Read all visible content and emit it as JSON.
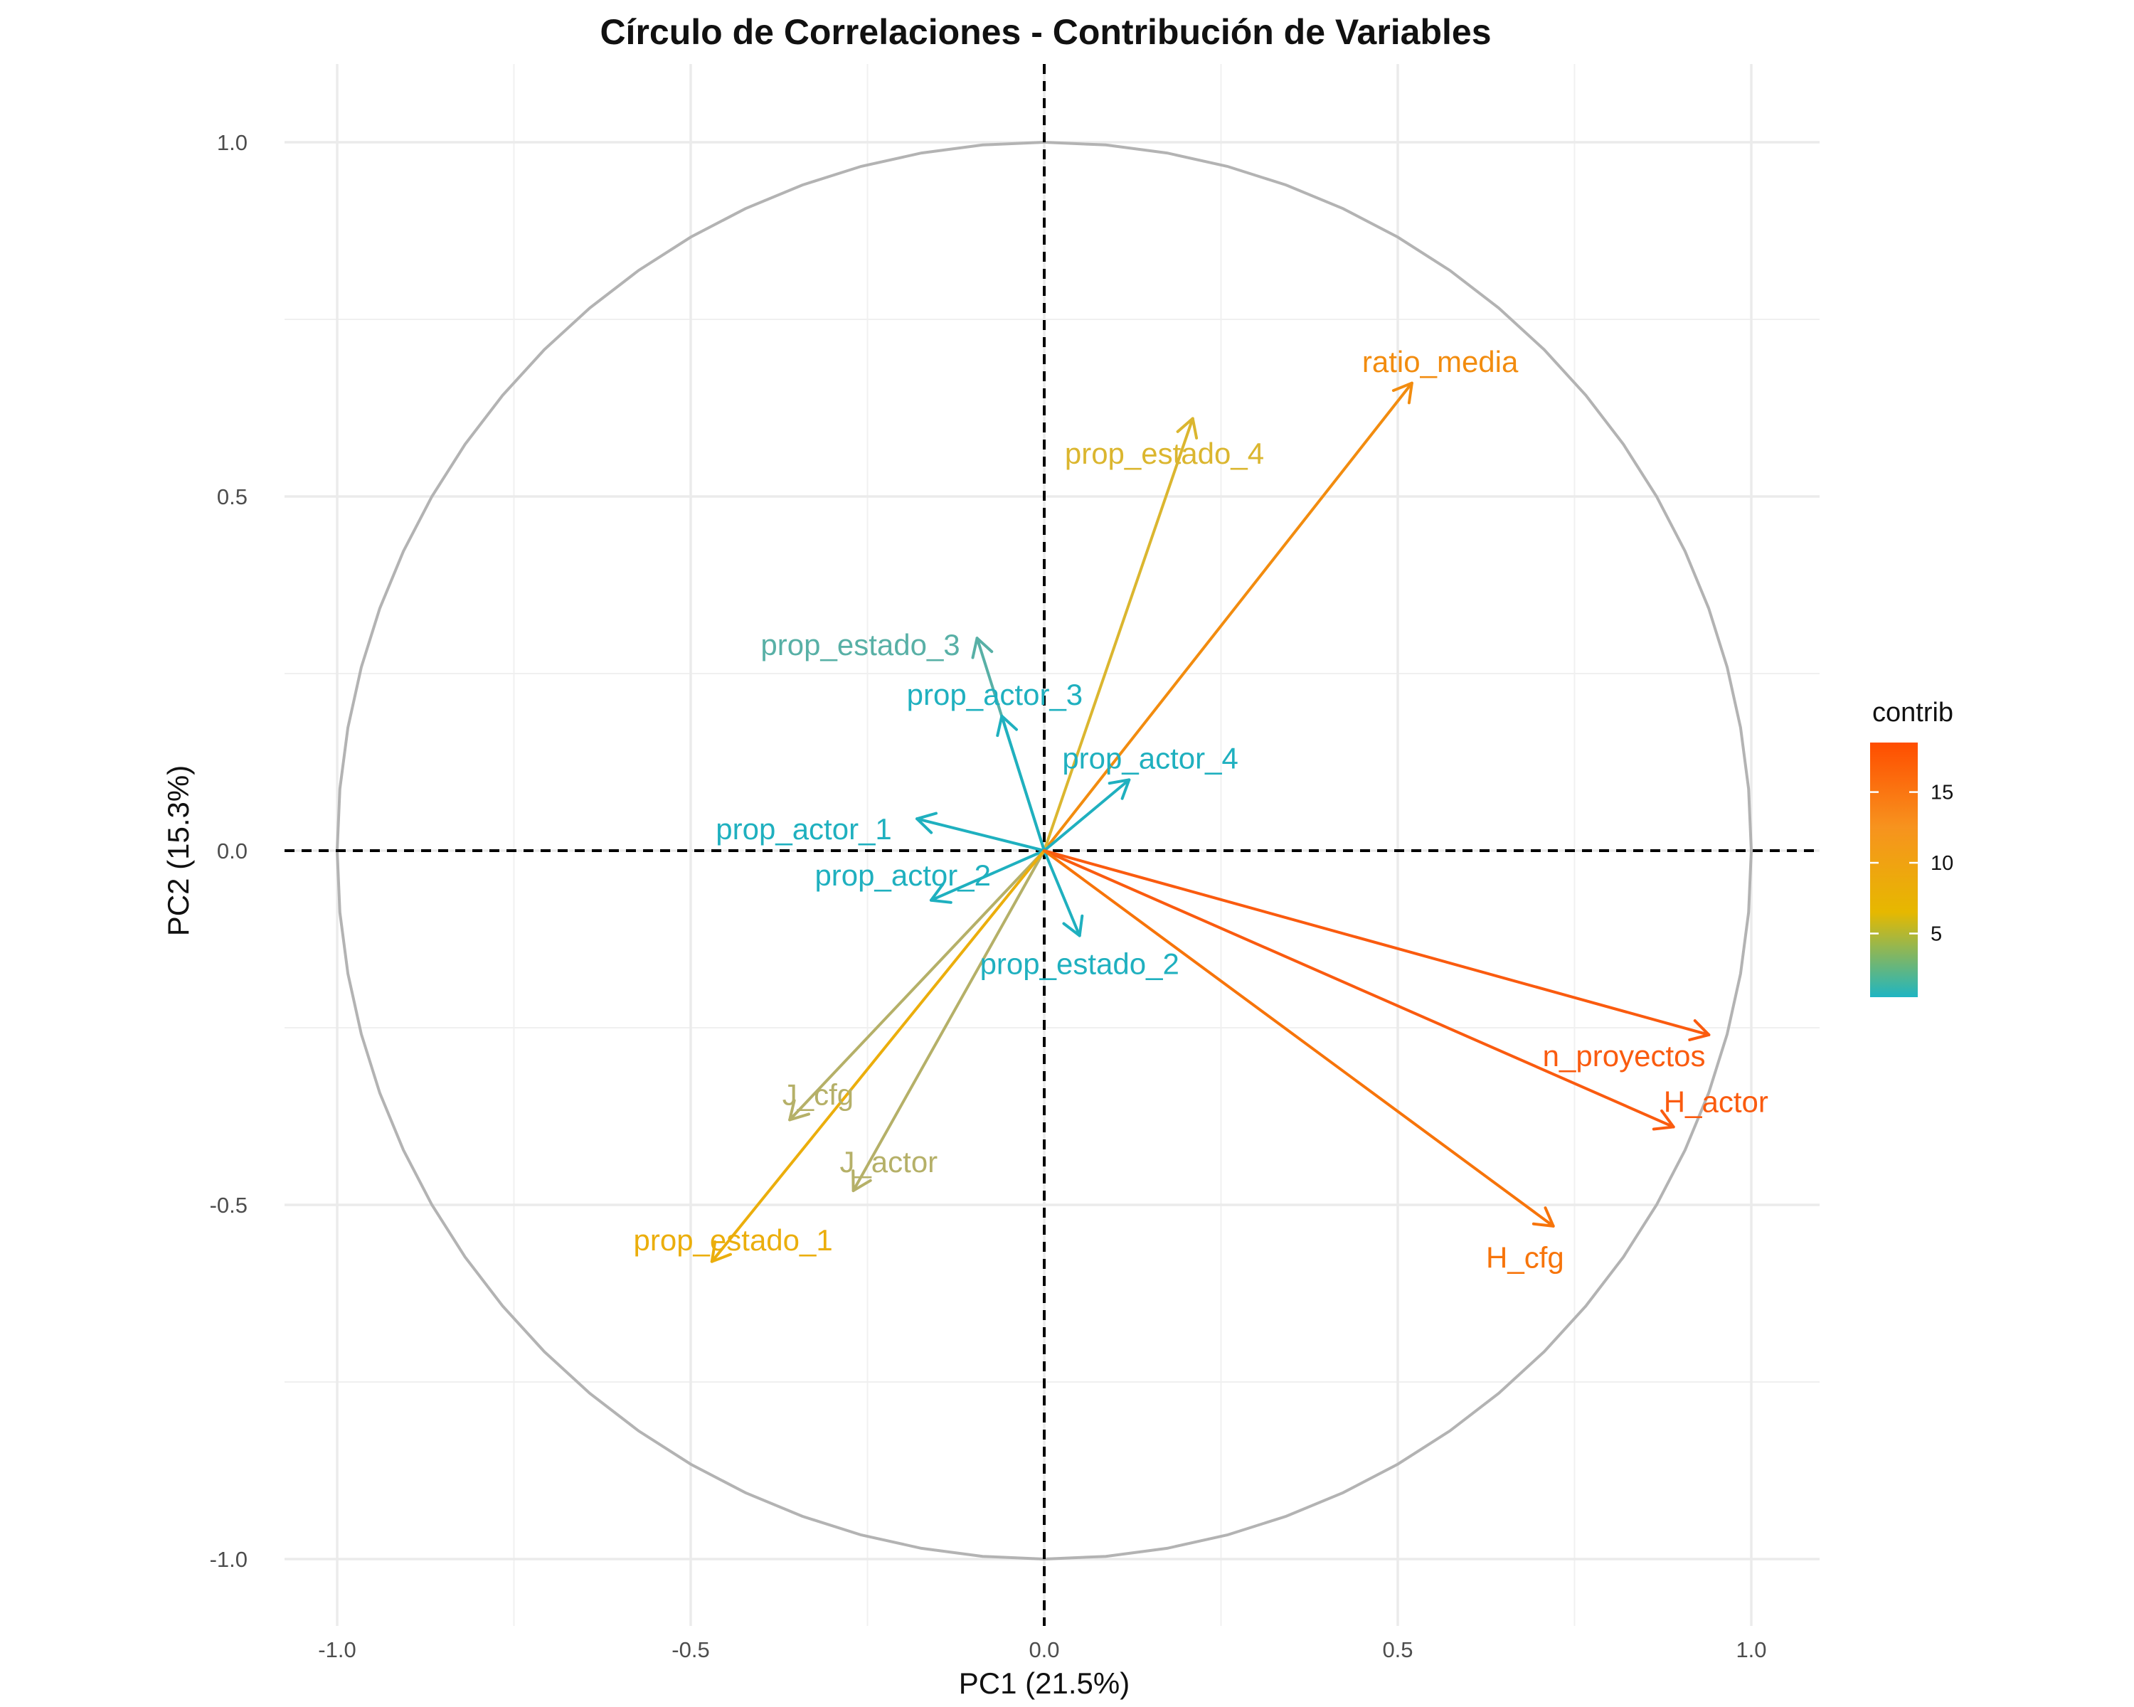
{
  "chart_data": {
    "type": "scatter",
    "subtype": "pca-correlation-circle",
    "title": "Círculo de Correlaciones - Contribución de Variables",
    "xlabel": "PC1 (21.5%)",
    "ylabel": "PC2 (15.3%)",
    "xlim": [
      -1.1,
      1.1
    ],
    "ylim": [
      -1.1,
      1.1
    ],
    "x_ticks": [
      -1.0,
      -0.5,
      0.0,
      0.5,
      1.0
    ],
    "y_ticks": [
      -1.0,
      -0.5,
      0.0,
      0.5,
      1.0
    ],
    "x_tick_labels": [
      "-1.0",
      "-0.5",
      "0.0",
      "0.5",
      "1.0"
    ],
    "y_tick_labels": [
      "-1.0",
      "-0.5",
      "0.0",
      "0.5",
      "1.0"
    ],
    "grid": true,
    "unit_circle": true,
    "reference_lines": [
      "x=0",
      "y=0"
    ],
    "legend": {
      "title": "contrib",
      "type": "gradient",
      "placement": "right",
      "ticks": [
        5,
        10,
        15
      ],
      "tick_labels": [
        "5",
        "10",
        "15"
      ],
      "range": [
        0.5,
        18.5
      ],
      "colors": [
        "#1fb5c2",
        "#e6b800",
        "#f7931e",
        "#ff4d00"
      ]
    },
    "variables": [
      {
        "name": "ratio_media",
        "x": 0.52,
        "y": 0.66,
        "contrib": 14.5,
        "color": "#f28c0f",
        "label_anchor": [
          0.56,
          0.69
        ]
      },
      {
        "name": "prop_estado_4",
        "x": 0.21,
        "y": 0.61,
        "contrib": 9.0,
        "color": "#dbb62f",
        "label_anchor": [
          0.17,
          0.56
        ]
      },
      {
        "name": "prop_estado_3",
        "x": -0.095,
        "y": 0.3,
        "contrib": 3.0,
        "color": "#58b0a6",
        "label_anchor": [
          -0.26,
          0.29
        ]
      },
      {
        "name": "prop_actor_3",
        "x": -0.06,
        "y": 0.19,
        "contrib": 1.2,
        "color": "#1fb0bf",
        "label_anchor": [
          -0.07,
          0.22
        ]
      },
      {
        "name": "prop_actor_4",
        "x": 0.12,
        "y": 0.1,
        "contrib": 0.8,
        "color": "#1fb0bf",
        "label_anchor": [
          0.15,
          0.13
        ]
      },
      {
        "name": "prop_actor_1",
        "x": -0.18,
        "y": 0.045,
        "contrib": 1.1,
        "color": "#1fb0bf",
        "label_anchor": [
          -0.34,
          0.03
        ]
      },
      {
        "name": "prop_actor_2",
        "x": -0.16,
        "y": -0.07,
        "contrib": 1.0,
        "color": "#1fb0bf",
        "label_anchor": [
          -0.2,
          -0.035
        ]
      },
      {
        "name": "prop_estado_2",
        "x": 0.05,
        "y": -0.12,
        "contrib": 0.9,
        "color": "#1fb0bf",
        "label_anchor": [
          0.05,
          -0.16
        ]
      },
      {
        "name": "J_cfg",
        "x": -0.36,
        "y": -0.38,
        "contrib": 7.0,
        "color": "#b5b068",
        "label_anchor": [
          -0.32,
          -0.345
        ]
      },
      {
        "name": "J_actor",
        "x": -0.27,
        "y": -0.48,
        "contrib": 7.5,
        "color": "#b5b068",
        "label_anchor": [
          -0.22,
          -0.44
        ]
      },
      {
        "name": "prop_estado_1",
        "x": -0.47,
        "y": -0.58,
        "contrib": 11.5,
        "color": "#ebae0c",
        "label_anchor": [
          -0.44,
          -0.55
        ]
      },
      {
        "name": "n_proyectos",
        "x": 0.94,
        "y": -0.26,
        "contrib": 18.0,
        "color": "#fa5b0f",
        "label_anchor": [
          0.82,
          -0.29
        ]
      },
      {
        "name": "H_actor",
        "x": 0.89,
        "y": -0.39,
        "contrib": 18.0,
        "color": "#fa5b0f",
        "label_anchor": [
          0.95,
          -0.355
        ]
      },
      {
        "name": "H_cfg",
        "x": 0.72,
        "y": -0.53,
        "contrib": 16.0,
        "color": "#f7740a",
        "label_anchor": [
          0.68,
          -0.575
        ]
      }
    ]
  }
}
